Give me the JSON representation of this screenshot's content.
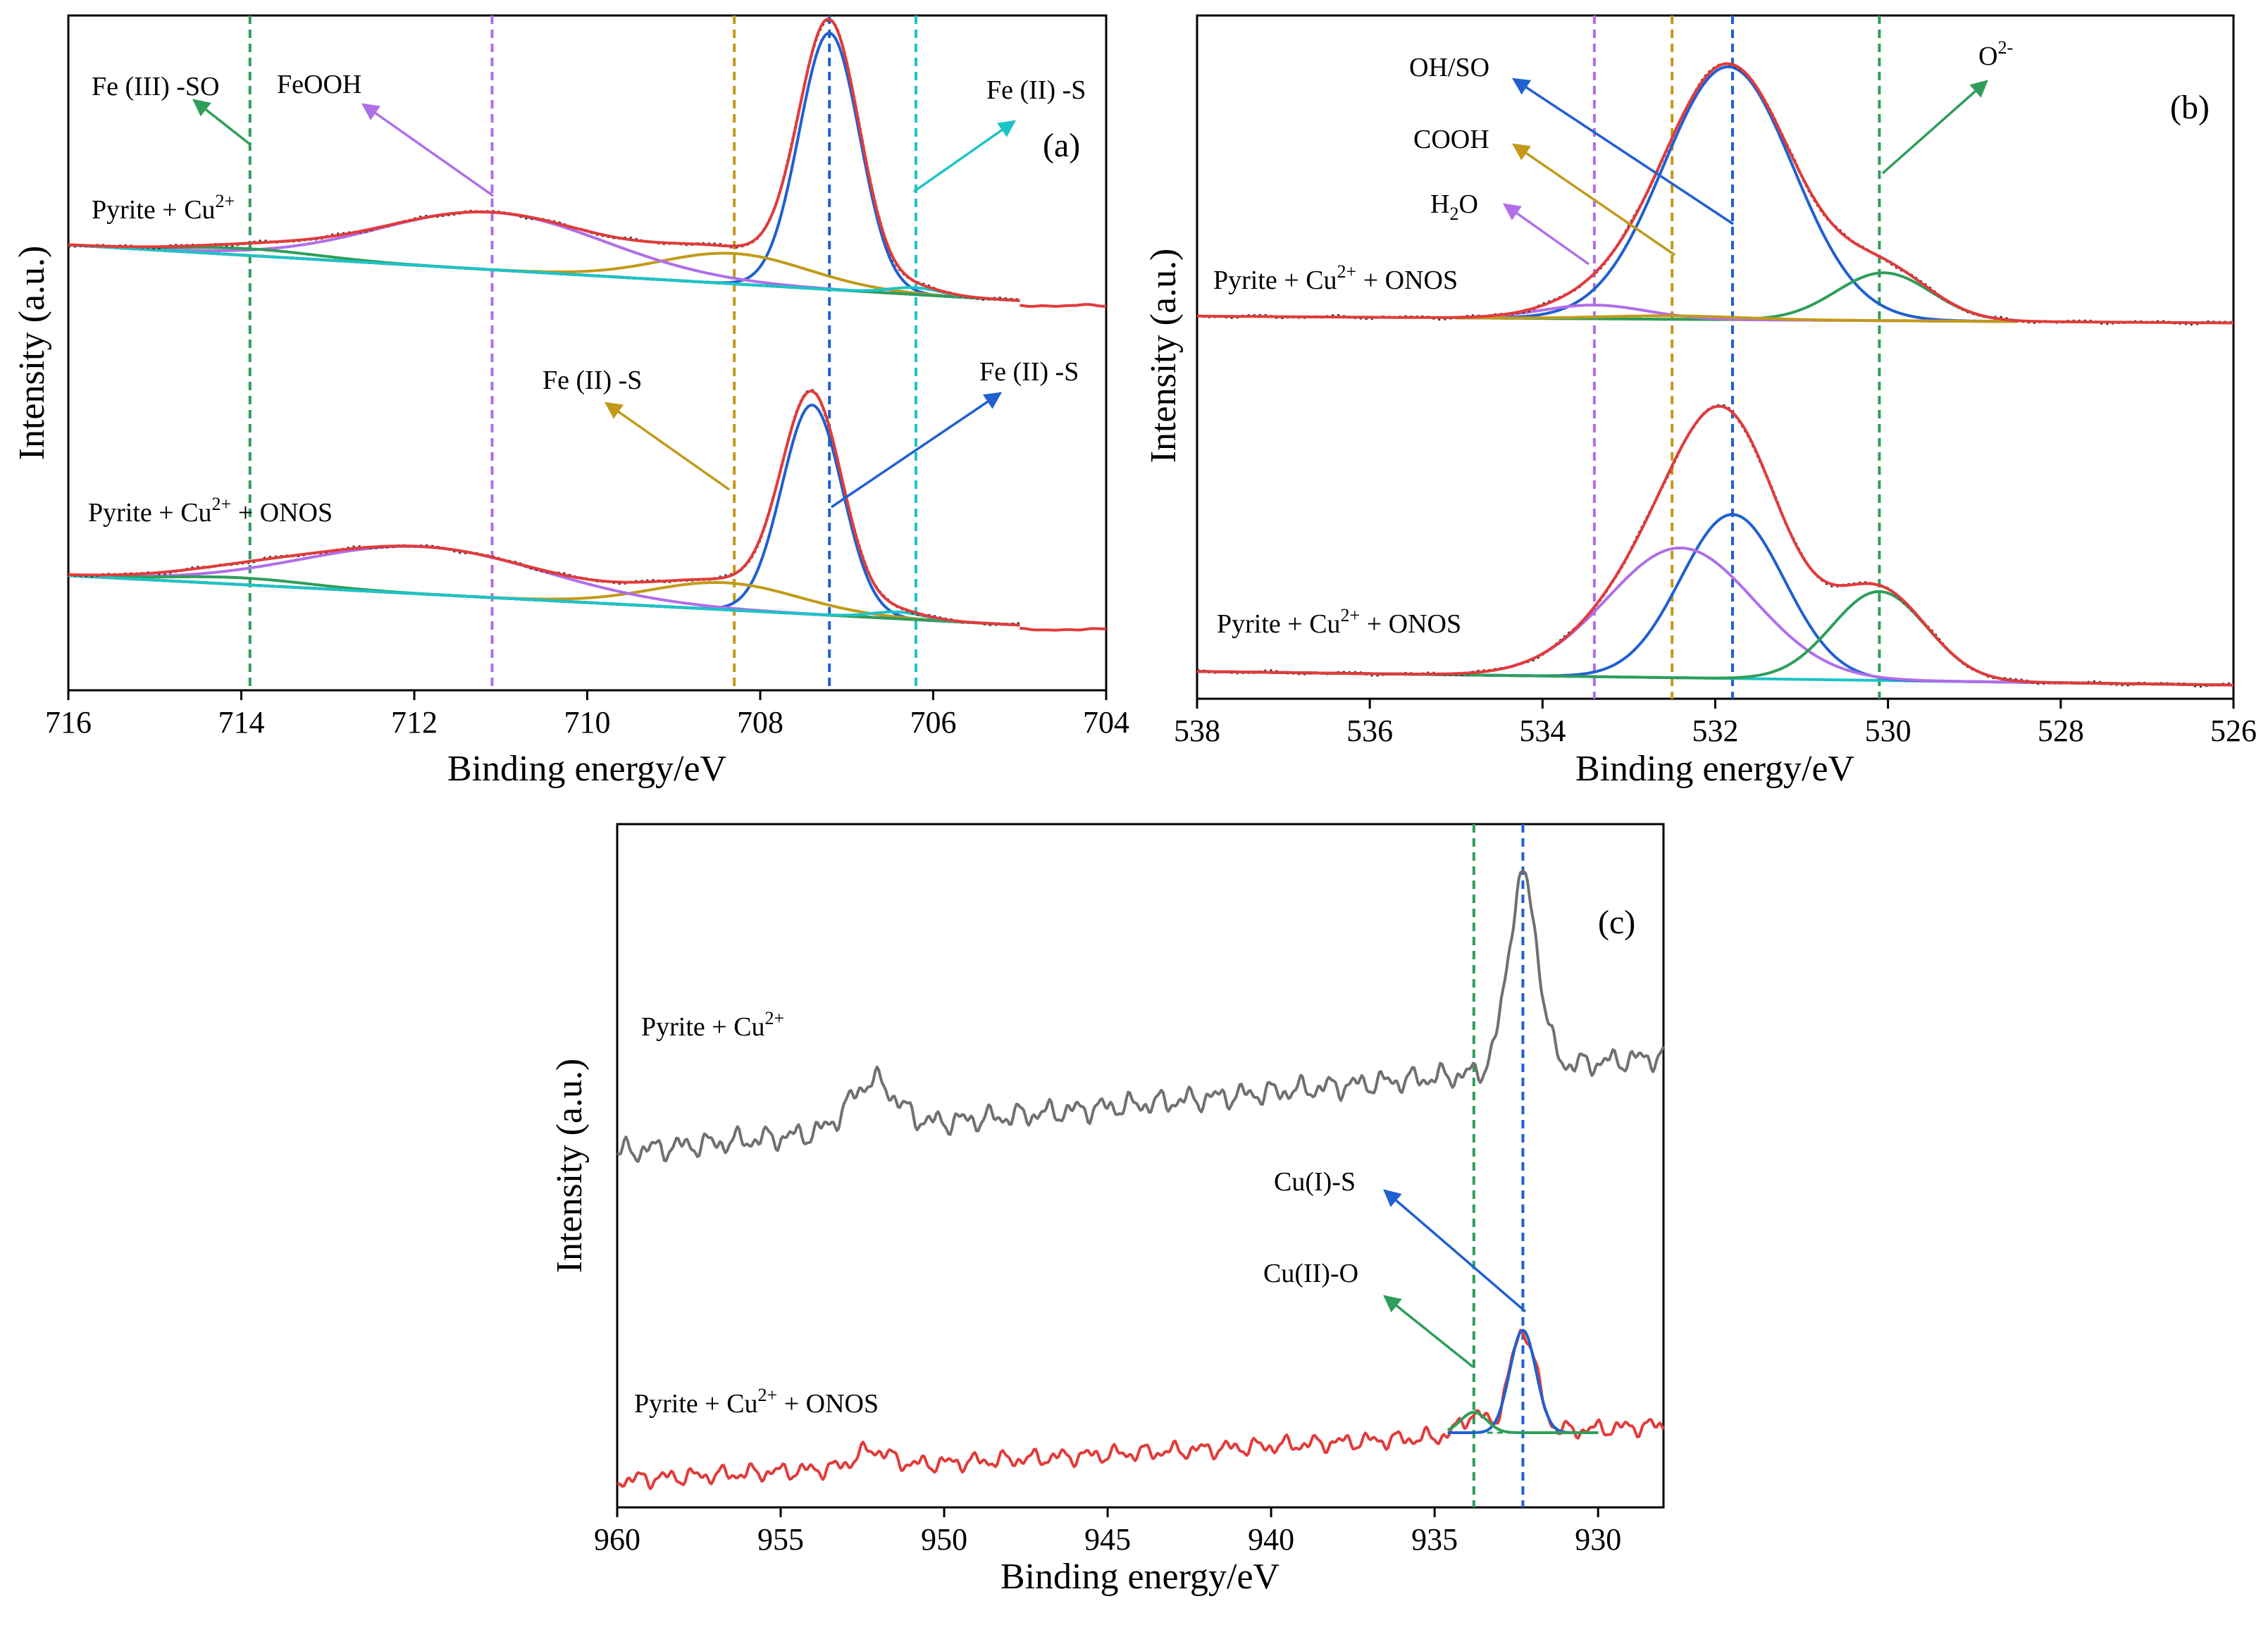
{
  "colors": {
    "red": "#e23b3b",
    "blue": "#2060d0",
    "green": "#2e9e5a",
    "purple": "#b06ee8",
    "gold": "#c29a1a",
    "cyan": "#1cc4c8",
    "brown": "#7a4a40",
    "gray": "#707070",
    "dark": "#333333"
  },
  "chart_data": [
    {
      "panel": "a",
      "type": "line",
      "tag": "(a)",
      "xlabel": "Binding energy/eV",
      "ylabel": "Intensity (a.u.)",
      "xlim": [
        716,
        704
      ],
      "ylim": [
        0,
        100
      ],
      "xticks": [
        716,
        714,
        712,
        710,
        708,
        706,
        704
      ],
      "xtick_labels": [
        "716",
        "714",
        "712",
        "710",
        "708",
        "706",
        "704"
      ],
      "vlines": [
        {
          "x": 713.9,
          "color": "green"
        },
        {
          "x": 711.1,
          "color": "purple"
        },
        {
          "x": 708.3,
          "color": "gold"
        },
        {
          "x": 707.2,
          "color": "blue"
        },
        {
          "x": 706.2,
          "color": "cyan"
        }
      ],
      "spectra": [
        {
          "label": "Pyrite + Cu",
          "label_sup": "2+",
          "label_rest": "",
          "range": [
            716,
            705
          ],
          "baseline": {
            "start": 66,
            "end": 57
          },
          "envelope_end": 57,
          "peaks": [
            {
              "name": "Fe(II)-S",
              "center": 707.2,
              "height": 38,
              "width": 0.35,
              "color": "blue"
            },
            {
              "name": "Fe(II)-S",
              "center": 708.3,
              "height": 4.5,
              "width": 0.85,
              "color": "gold"
            },
            {
              "name": "FeOOH",
              "center": 711.1,
              "height": 8.5,
              "width": 1.3,
              "color": "purple"
            },
            {
              "name": "Fe(III)-SO",
              "center": 713.9,
              "height": 1.0,
              "width": 0.8,
              "color": "green"
            },
            {
              "name": "Fe(II)-S",
              "center": 706.2,
              "height": 1.0,
              "width": 0.3,
              "color": "cyan"
            }
          ]
        },
        {
          "label": "Pyrite + Cu",
          "label_sup": "2+",
          "label_rest": " + ONOS",
          "range": [
            716,
            705
          ],
          "baseline": {
            "start": 17,
            "end": 9
          },
          "envelope_end": 9,
          "peaks": [
            {
              "name": "Fe(II)-S",
              "center": 707.4,
              "height": 31,
              "width": 0.35,
              "color": "blue"
            },
            {
              "name": "Fe(II)-S",
              "center": 708.4,
              "height": 4,
              "width": 0.85,
              "color": "gold"
            },
            {
              "name": "FeOOH",
              "center": 711.9,
              "height": 7,
              "width": 1.4,
              "color": "purple"
            },
            {
              "name": "Fe(III)-SO",
              "center": 714.0,
              "height": 1.0,
              "width": 0.8,
              "color": "green"
            },
            {
              "name": "Fe(II)-S",
              "center": 706.4,
              "height": 1.0,
              "width": 0.3,
              "color": "cyan"
            }
          ]
        }
      ],
      "annotations": [
        {
          "text": "Fe (III) -SO",
          "color": "green"
        },
        {
          "text": "FeOOH",
          "color": "purple"
        },
        {
          "text": "Fe (II) -S",
          "color": "cyan"
        },
        {
          "text": "Fe (II) -S",
          "color": "gold"
        },
        {
          "text": "Fe (II) -S",
          "color": "blue"
        }
      ]
    },
    {
      "panel": "b",
      "type": "line",
      "tag": "(b)",
      "xlabel": "Binding energy/eV",
      "ylabel": "Intensity (a.u.)",
      "xlim": [
        538,
        526
      ],
      "ylim": [
        0,
        100
      ],
      "xticks": [
        538,
        536,
        534,
        532,
        530,
        528,
        526
      ],
      "xtick_labels": [
        "538",
        "536",
        "534",
        "532",
        "530",
        "528",
        "526"
      ],
      "vlines": [
        {
          "x": 533.4,
          "color": "purple"
        },
        {
          "x": 532.5,
          "color": "gold"
        },
        {
          "x": 531.8,
          "color": "blue"
        },
        {
          "x": 530.1,
          "color": "green"
        }
      ],
      "spectra": [
        {
          "label": "Pyrite + Cu",
          "label_sup": "2+",
          "label_rest": " + ONOS",
          "range": [
            535,
            528.5
          ],
          "raw_range": [
            538,
            526
          ],
          "baseline": {
            "start": 56,
            "end": 55
          },
          "peaks": [
            {
              "name": "OH/SO",
              "center": 531.85,
              "height": 37,
              "width": 0.75,
              "color": "blue"
            },
            {
              "name": "O2-",
              "center": 530.05,
              "height": 7,
              "width": 0.55,
              "color": "green"
            },
            {
              "name": "H2O",
              "center": 533.4,
              "height": 2,
              "width": 0.6,
              "color": "purple"
            },
            {
              "name": "COOH",
              "center": 532.5,
              "height": 0.5,
              "width": 0.8,
              "color": "gold"
            }
          ]
        },
        {
          "label": "Pyrite + Cu",
          "label_sup": "2+",
          "label_rest": " + ONOS",
          "range": [
            538,
            526
          ],
          "raw_range": [
            538,
            526
          ],
          "baseline": {
            "start": 4,
            "end": 2
          },
          "peaks": [
            {
              "name": "OH/SO",
              "center": 531.8,
              "height": 24,
              "width": 0.6,
              "color": "blue"
            },
            {
              "name": "H2O",
              "center": 532.4,
              "height": 19,
              "width": 0.85,
              "color": "purple"
            },
            {
              "name": "O2-",
              "center": 530.1,
              "height": 13,
              "width": 0.55,
              "color": "green"
            }
          ]
        }
      ],
      "annotations": [
        {
          "text": "OH/SO",
          "color": "blue"
        },
        {
          "text": "COOH",
          "color": "gold"
        },
        {
          "text": "H",
          "sub": "2",
          "rest": "O",
          "color": "purple"
        },
        {
          "text": "O",
          "sup": "2-",
          "color": "green"
        }
      ]
    },
    {
      "panel": "c",
      "type": "line",
      "tag": "(c)",
      "xlabel": "Binding energy/eV",
      "ylabel": "Intensity (a.u.)",
      "xlim": [
        960,
        928
      ],
      "ylim": [
        0,
        100
      ],
      "xticks": [
        960,
        955,
        950,
        945,
        940,
        935,
        930
      ],
      "xtick_labels": [
        "960",
        "955",
        "950",
        "945",
        "940",
        "935",
        "930"
      ],
      "vlines": [
        {
          "x": 933.8,
          "color": "green"
        },
        {
          "x": 932.3,
          "color": "blue"
        }
      ],
      "spectra": [
        {
          "label": "Pyrite + Cu",
          "label_sup": "2+",
          "label_rest": "",
          "color": "gray",
          "baseline": {
            "start": 52,
            "end": 66
          },
          "peaks": [
            {
              "center": 932.3,
              "height": 28,
              "width": 0.45
            },
            {
              "center": 952.2,
              "height": 7,
              "width": 0.7
            }
          ]
        },
        {
          "label": "Pyrite + Cu",
          "label_sup": "2+",
          "label_rest": " + ONOS",
          "color": "red",
          "baseline": {
            "start": 4,
            "end": 12
          },
          "fit_range": [
            934.6,
            930
          ],
          "peaks": [
            {
              "name": "Cu(I)-S",
              "center": 932.3,
              "height": 15,
              "width": 0.4,
              "color": "blue"
            },
            {
              "name": "Cu(II)-O",
              "center": 933.8,
              "height": 3,
              "width": 0.4,
              "color": "green"
            },
            {
              "center": 952.2,
              "height": 2.5,
              "width": 0.5
            }
          ]
        }
      ],
      "annotations": [
        {
          "text": "Cu(I)-S",
          "color": "blue"
        },
        {
          "text": "Cu(II)-O",
          "color": "green"
        }
      ]
    }
  ]
}
